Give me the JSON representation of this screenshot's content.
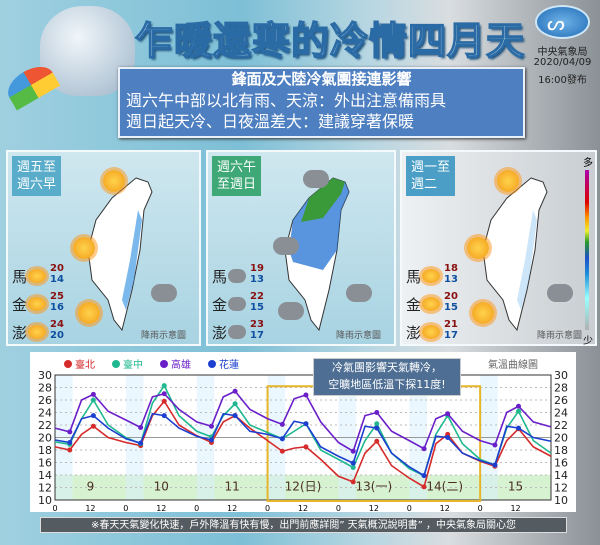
{
  "header": {
    "title": "乍暖還寒的冷情四月天",
    "agency": "中央氣象局",
    "date": "2020/04/09",
    "issued": "16:00發布"
  },
  "summary": {
    "heading": "鋒面及大陸冷氣團接連影響",
    "line1": "週六午中部以北有雨、天涼：外出注意備雨具",
    "line2": "週日起天冷、日夜溫差大：建議穿著保暖"
  },
  "panels": [
    {
      "label": "週五至\n週六早",
      "label_color": "#5aaccb",
      "icon": "sun-cloud",
      "caption": "降雨示意圖",
      "islands": [
        {
          "name": "馬",
          "hi": "20",
          "lo": "14",
          "icon": "sun"
        },
        {
          "name": "金",
          "hi": "25",
          "lo": "16",
          "icon": "sun"
        },
        {
          "name": "澎",
          "hi": "24",
          "lo": "20",
          "icon": "sun"
        }
      ]
    },
    {
      "label": "週六午\n至週日",
      "label_color": "#3fa877",
      "icon": "rain-cloud",
      "caption": "降雨示意圖",
      "islands": [
        {
          "name": "馬",
          "hi": "19",
          "lo": "13",
          "icon": "rain"
        },
        {
          "name": "金",
          "hi": "22",
          "lo": "15",
          "icon": "rain"
        },
        {
          "name": "澎",
          "hi": "23",
          "lo": "17",
          "icon": "rain"
        }
      ]
    },
    {
      "label": "週一至\n週二",
      "label_color": "#4b9fc7",
      "icon": "sun-cloud",
      "caption": "降雨示意圖",
      "islands": [
        {
          "name": "馬",
          "hi": "18",
          "lo": "13",
          "icon": "sun"
        },
        {
          "name": "金",
          "hi": "20",
          "lo": "15",
          "icon": "sun"
        },
        {
          "name": "澎",
          "hi": "21",
          "lo": "17",
          "icon": "sun"
        }
      ]
    }
  ],
  "rain_scale": {
    "top": "多",
    "bottom": "少"
  },
  "chart_note": {
    "line1": "冷氣團影響天氣轉冷，",
    "line2": "空曠地區低溫下探11度!"
  },
  "chart_data": {
    "type": "line",
    "title": "氣溫曲線圖",
    "ylim": [
      10,
      30
    ],
    "yticks": [
      10,
      12,
      14,
      16,
      18,
      20,
      22,
      24,
      26,
      28,
      30
    ],
    "grid": true,
    "legend": "top-left",
    "x_hour_ticks": [
      "0",
      "12"
    ],
    "day_labels": [
      "9",
      "10",
      "11",
      "12(日)",
      "13(一)",
      "14(二)",
      "15"
    ],
    "hours": [
      0,
      5,
      9,
      13,
      18
    ],
    "series": [
      {
        "name": "臺北",
        "color": "#d62b2b",
        "values": [
          [
            18.5,
            18.0,
            20.5,
            21.8,
            20.0
          ],
          [
            19.2,
            18.7,
            23.5,
            25.8,
            22.0
          ],
          [
            20.3,
            19.2,
            22.5,
            23.5,
            21.5
          ],
          [
            19.5,
            17.8,
            18.3,
            18.5,
            16.5
          ],
          [
            13.8,
            12.9,
            17.5,
            19.4,
            15.5
          ],
          [
            13.5,
            12.1,
            19.0,
            20.5,
            17.5
          ],
          [
            16.2,
            15.4,
            19.5,
            21.4,
            18.5
          ]
        ],
        "end": 17.0
      },
      {
        "name": "臺中",
        "color": "#20b890",
        "values": [
          [
            19.3,
            18.9,
            23.0,
            26.0,
            22.0
          ],
          [
            20.0,
            19.0,
            25.5,
            28.3,
            23.5
          ],
          [
            21.0,
            20.1,
            23.5,
            25.4,
            22.0
          ],
          [
            20.8,
            19.8,
            21.0,
            22.2,
            18.0
          ],
          [
            16.5,
            15.2,
            19.5,
            22.2,
            17.5
          ],
          [
            15.0,
            13.9,
            20.5,
            23.5,
            19.0
          ],
          [
            16.5,
            15.6,
            21.5,
            24.2,
            19.5
          ]
        ],
        "end": 17.5
      },
      {
        "name": "高雄",
        "color": "#6a1fc9",
        "values": [
          [
            21.5,
            20.9,
            26.0,
            26.9,
            24.2
          ],
          [
            22.8,
            21.6,
            26.5,
            27.0,
            24.5
          ],
          [
            22.5,
            21.8,
            26.5,
            27.4,
            24.5
          ],
          [
            23.0,
            22.1,
            26.2,
            26.8,
            22.5
          ],
          [
            19.2,
            17.8,
            23.5,
            24.0,
            21.0
          ],
          [
            19.5,
            18.2,
            23.0,
            23.8,
            21.0
          ],
          [
            19.5,
            18.8,
            24.0,
            25.0,
            22.5
          ]
        ],
        "end": 21.7
      },
      {
        "name": "花蓮",
        "color": "#1c3fd0",
        "values": [
          [
            19.6,
            19.2,
            23.0,
            23.5,
            21.5
          ],
          [
            19.8,
            19.1,
            23.8,
            23.5,
            21.5
          ],
          [
            20.2,
            19.6,
            23.8,
            23.5,
            21.0
          ],
          [
            20.5,
            19.8,
            22.6,
            22.2,
            18.5
          ],
          [
            17.0,
            15.9,
            21.8,
            21.5,
            17.5
          ],
          [
            15.3,
            13.9,
            20.2,
            20.0,
            17.5
          ],
          [
            16.3,
            15.6,
            21.8,
            21.5,
            20.0
          ]
        ],
        "end": 19.4
      }
    ],
    "highlight_days": [
      "12(日)",
      "13(一)",
      "14(二)"
    ]
  },
  "footer": "※春天天氣變化快速，戶外降溫有快有慢，出門前應詳閱” 天氣概況說明書” ，中央氣象局關心您"
}
